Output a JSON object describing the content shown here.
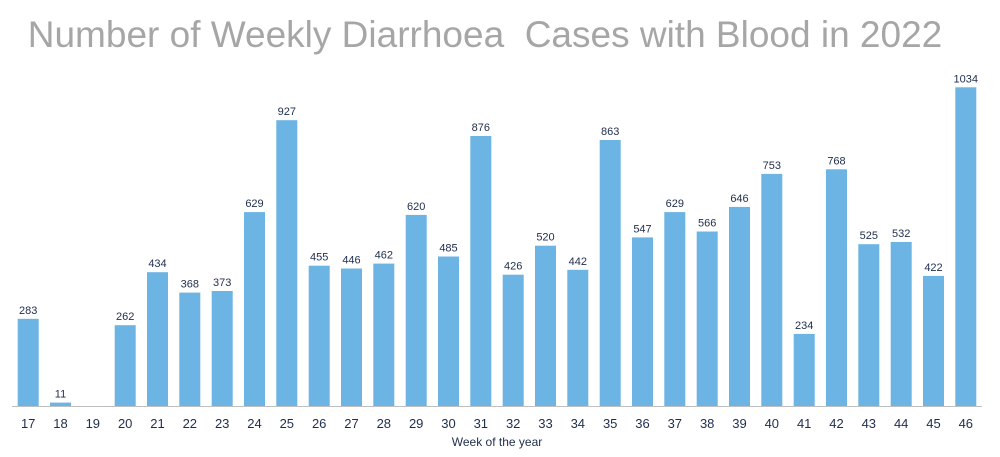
{
  "chart_data": {
    "type": "bar",
    "title": "Number of Weekly Diarrhoea  Cases with Blood in 2022",
    "xlabel": "Week of the year",
    "ylabel": "",
    "categories": [
      "17",
      "18",
      "19",
      "20",
      "21",
      "22",
      "23",
      "24",
      "25",
      "26",
      "27",
      "28",
      "29",
      "30",
      "31",
      "32",
      "33",
      "34",
      "35",
      "36",
      "37",
      "38",
      "39",
      "40",
      "41",
      "42",
      "43",
      "44",
      "45",
      "46"
    ],
    "values": [
      283,
      11,
      null,
      262,
      434,
      368,
      373,
      629,
      927,
      455,
      446,
      462,
      620,
      485,
      876,
      426,
      520,
      442,
      863,
      547,
      629,
      566,
      646,
      753,
      234,
      768,
      525,
      532,
      422,
      1034
    ],
    "value_labels": [
      "283",
      "11",
      "",
      "262",
      "434",
      "368",
      "373",
      "629",
      "927",
      "455",
      "446",
      "462",
      "620",
      "485",
      "876",
      "426",
      "520",
      "442",
      "863",
      "547",
      "629",
      "566",
      "646",
      "753",
      "234",
      "768",
      "525",
      "532",
      "422",
      "1034"
    ],
    "ylim": [
      0,
      1090
    ],
    "grid": false,
    "legend": "none",
    "colors": {
      "bar": "#6cb4e3",
      "title": "#a6a6a6",
      "text": "#1f2d4d",
      "axis": "#bfbfbf"
    }
  }
}
